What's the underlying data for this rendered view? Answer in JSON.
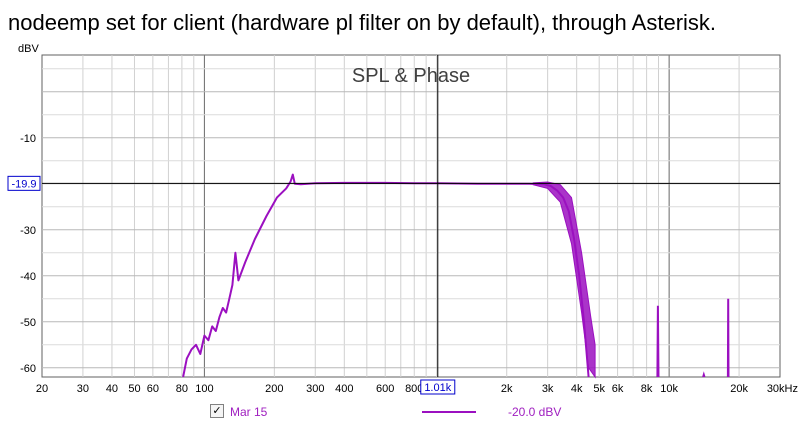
{
  "caption": "nodeemp set for client (hardware pl filter on by default), through Asterisk.",
  "chart_data": {
    "type": "line",
    "title": "SPL & Phase",
    "ylabel": "dBV",
    "x_scale": "log",
    "xlim": [
      20,
      30000
    ],
    "ylim": [
      -62,
      8
    ],
    "grid": true,
    "y_ticks": [
      -10,
      -20,
      -30,
      -40,
      -50,
      -60
    ],
    "y_tick_labels": [
      "-10",
      "",
      "-30",
      "-40",
      "-50",
      "-60"
    ],
    "x_ticks": [
      20,
      30,
      40,
      50,
      60,
      80,
      100,
      200,
      300,
      400,
      600,
      800,
      1010,
      2000,
      3000,
      4000,
      5000,
      6000,
      8000,
      10000,
      20000,
      30000
    ],
    "x_tick_labels": [
      "20",
      "30",
      "40",
      "50",
      "60",
      "80",
      "100",
      "200",
      "300",
      "400",
      "600",
      "800",
      "1.01k",
      "2k",
      "3k",
      "4k",
      "5k",
      "6k",
      "8k",
      "10k",
      "20k",
      "30kHz"
    ],
    "cursor": {
      "x": 1010,
      "y": -19.9,
      "x_label": "1.01k",
      "y_label": "-19.9"
    },
    "series": [
      {
        "name": "Mar 15",
        "color": "#9b10c0",
        "level_label": "-20.0 dBV",
        "points": [
          [
            81,
            -62
          ],
          [
            84,
            -58
          ],
          [
            88,
            -56
          ],
          [
            92,
            -55
          ],
          [
            96,
            -57
          ],
          [
            100,
            -53
          ],
          [
            104,
            -54
          ],
          [
            108,
            -51
          ],
          [
            112,
            -52
          ],
          [
            116,
            -49
          ],
          [
            120,
            -47
          ],
          [
            124,
            -48
          ],
          [
            128,
            -45
          ],
          [
            132,
            -42
          ],
          [
            136,
            -35
          ],
          [
            140,
            -41
          ],
          [
            150,
            -37
          ],
          [
            165,
            -32
          ],
          [
            185,
            -27
          ],
          [
            205,
            -23
          ],
          [
            225,
            -21
          ],
          [
            235,
            -19.5
          ],
          [
            240,
            -18
          ],
          [
            245,
            -20
          ],
          [
            260,
            -20.1
          ],
          [
            300,
            -19.9
          ],
          [
            400,
            -19.8
          ],
          [
            600,
            -19.8
          ],
          [
            800,
            -19.9
          ],
          [
            1010,
            -19.9
          ],
          [
            1500,
            -20.0
          ],
          [
            2000,
            -20.0
          ],
          [
            2500,
            -20.0
          ],
          [
            2900,
            -20.1
          ],
          [
            3100,
            -20.5
          ],
          [
            3300,
            -21.5
          ],
          [
            3500,
            -23
          ],
          [
            3700,
            -26
          ],
          [
            3900,
            -32
          ],
          [
            4100,
            -40
          ],
          [
            4300,
            -50
          ],
          [
            4400,
            -56
          ],
          [
            4500,
            -62
          ]
        ],
        "ripple_band": {
          "upper": [
            [
              2600,
              -19.8
            ],
            [
              3000,
              -19.6
            ],
            [
              3400,
              -20.2
            ],
            [
              3800,
              -23
            ],
            [
              4200,
              -35
            ],
            [
              4600,
              -49
            ],
            [
              4800,
              -55
            ]
          ],
          "lower": [
            [
              2600,
              -20.2
            ],
            [
              3000,
              -21
            ],
            [
              3400,
              -24
            ],
            [
              3800,
              -33
            ],
            [
              4200,
              -48
            ],
            [
              4500,
              -60
            ],
            [
              4800,
              -62
            ]
          ]
        },
        "spikes": [
          [
            [
              8900,
              -62
            ],
            [
              8950,
              -46.5
            ],
            [
              9000,
              -62
            ]
          ],
          [
            [
              14000,
              -62
            ],
            [
              14100,
              -61.5
            ],
            [
              14200,
              -62
            ]
          ],
          [
            [
              17900,
              -62
            ],
            [
              17950,
              -45
            ],
            [
              18000,
              -62
            ]
          ]
        ]
      }
    ]
  }
}
